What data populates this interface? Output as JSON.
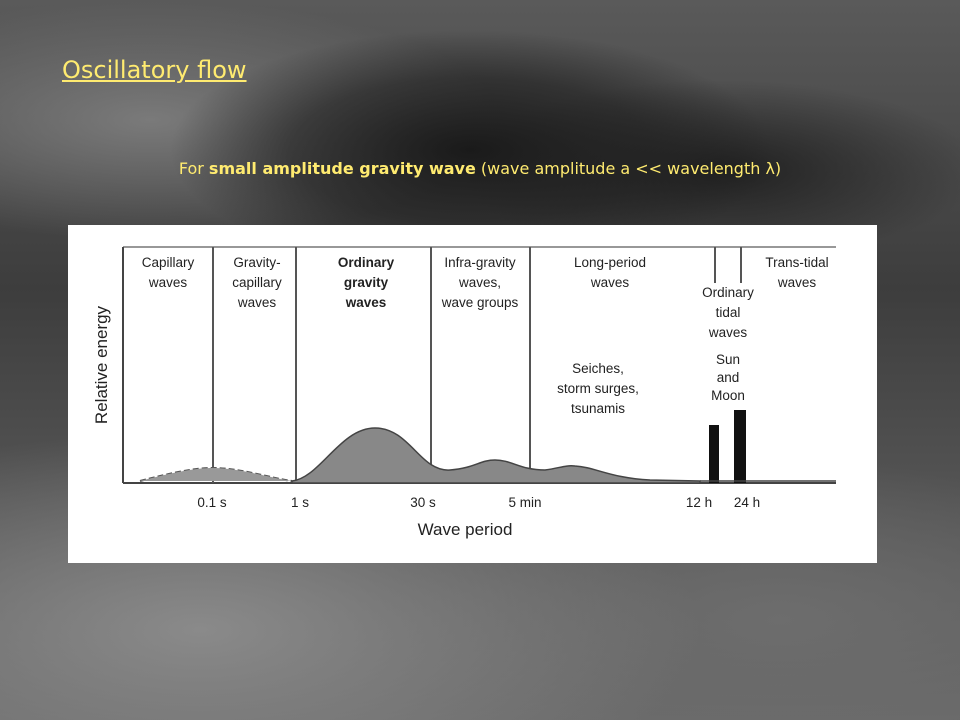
{
  "header": {
    "title": "Oscillatory flow",
    "subtitle": {
      "lead": "For ",
      "emphasis": "small amplitude gravity wave",
      "rest": " (wave amplitude a  << wavelength λ)"
    }
  },
  "figure": {
    "bands": [
      {
        "lines": [
          "Capillary",
          "waves"
        ]
      },
      {
        "lines": [
          "Gravity-",
          "capillary",
          "waves"
        ]
      },
      {
        "lines": [
          "Ordinary",
          "gravity",
          "waves"
        ]
      },
      {
        "lines": [
          "Infra-gravity",
          "waves,",
          "wave groups"
        ]
      },
      {
        "lines": [
          "Long-period",
          "waves"
        ]
      },
      {
        "lines": [
          "Ordinary",
          "tidal",
          "waves"
        ]
      },
      {
        "lines": [
          "Trans-tidal",
          "waves"
        ]
      }
    ],
    "annotations": [
      {
        "lines": [
          "Seiches,",
          "storm surges,",
          "tsunamis"
        ]
      },
      {
        "lines": [
          "Sun",
          "and",
          "Moon"
        ]
      }
    ],
    "y_label": "Relative energy",
    "x_ticks": [
      "0.1 s",
      "1 s",
      "30 s",
      "5 min",
      "12 h",
      "24 h"
    ],
    "x_label": "Wave period"
  }
}
